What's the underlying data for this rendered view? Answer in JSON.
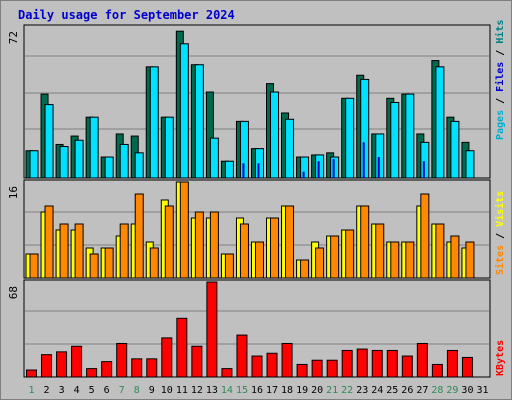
{
  "title": "Daily usage for September 2024",
  "colors": {
    "background": "#c0c0c0",
    "title": "#0000cc",
    "hits_front": "#00b0d0",
    "hits_back": "#006a4e",
    "files": "#00e0ff",
    "pages": "#008080",
    "visits_front": "#ffff00",
    "visits_back": "#ffd000",
    "sites": "#ff8800",
    "kbytes": "#ff0000",
    "weekend": "#2e8b57",
    "weekday": "#000000"
  },
  "chart_data": [
    {
      "type": "bar",
      "title": "",
      "ylabel_max": "72",
      "legend": [
        {
          "label": "Pages",
          "color": "#00b0d0"
        },
        {
          "label": "Files",
          "color": "#0000cc"
        },
        {
          "label": "Hits",
          "color": "#008080"
        }
      ],
      "categories": [
        "1",
        "2",
        "3",
        "4",
        "5",
        "6",
        "7",
        "8",
        "9",
        "10",
        "11",
        "12",
        "13",
        "14",
        "15",
        "16",
        "17",
        "18",
        "19",
        "20",
        "21",
        "22",
        "23",
        "24",
        "25",
        "26",
        "27",
        "28",
        "29",
        "30",
        "31"
      ],
      "ylim": [
        0,
        72
      ],
      "series": [
        {
          "name": "Hits",
          "values": [
            13,
            40,
            16,
            20,
            29,
            10,
            21,
            20,
            53,
            29,
            70,
            54,
            41,
            8,
            27,
            14,
            45,
            31,
            10,
            11,
            12,
            38,
            49,
            21,
            38,
            40,
            21,
            56,
            29,
            17,
            0
          ]
        },
        {
          "name": "Files",
          "values": [
            13,
            35,
            15,
            18,
            29,
            10,
            16,
            12,
            53,
            29,
            64,
            54,
            19,
            8,
            27,
            14,
            41,
            28,
            10,
            11,
            10,
            38,
            47,
            21,
            36,
            40,
            17,
            53,
            27,
            13,
            0
          ]
        },
        {
          "name": "Pages",
          "values": [
            0,
            0,
            0,
            0,
            0,
            0,
            0,
            0,
            0,
            0,
            0,
            0,
            0,
            0,
            7,
            7,
            0,
            0,
            3,
            8,
            9,
            0,
            17,
            10,
            0,
            0,
            8,
            0,
            0,
            0,
            0
          ]
        }
      ]
    },
    {
      "type": "bar",
      "title": "",
      "ylabel_max": "16",
      "legend": [
        {
          "label": "Sites",
          "color": "#ff8800"
        },
        {
          "label": "Visits",
          "color": "#ffff00"
        }
      ],
      "categories": [
        "1",
        "2",
        "3",
        "4",
        "5",
        "6",
        "7",
        "8",
        "9",
        "10",
        "11",
        "12",
        "13",
        "14",
        "15",
        "16",
        "17",
        "18",
        "19",
        "20",
        "21",
        "22",
        "23",
        "24",
        "25",
        "26",
        "27",
        "28",
        "29",
        "30",
        "31"
      ],
      "ylim": [
        0,
        16
      ],
      "series": [
        {
          "name": "Visits",
          "values": [
            4,
            11,
            8,
            8,
            5,
            5,
            7,
            9,
            6,
            13,
            16,
            10,
            10,
            4,
            10,
            6,
            10,
            12,
            3,
            6,
            7,
            8,
            12,
            9,
            6,
            6,
            12,
            9,
            6,
            5,
            0
          ]
        },
        {
          "name": "Sites",
          "values": [
            4,
            12,
            9,
            9,
            4,
            5,
            9,
            14,
            5,
            12,
            16,
            11,
            11,
            4,
            9,
            6,
            10,
            12,
            3,
            5,
            7,
            8,
            12,
            9,
            6,
            6,
            14,
            9,
            7,
            6,
            0
          ]
        }
      ]
    },
    {
      "type": "bar",
      "title": "",
      "ylabel_max": "68",
      "legend": [
        {
          "label": "KBytes",
          "color": "#ff0000"
        }
      ],
      "categories": [
        "1",
        "2",
        "3",
        "4",
        "5",
        "6",
        "7",
        "8",
        "9",
        "10",
        "11",
        "12",
        "13",
        "14",
        "15",
        "16",
        "17",
        "18",
        "19",
        "20",
        "21",
        "22",
        "23",
        "24",
        "25",
        "26",
        "27",
        "28",
        "29",
        "30",
        "31"
      ],
      "ylim": [
        0,
        68
      ],
      "series": [
        {
          "name": "KBytes",
          "values": [
            5,
            16,
            18,
            22,
            6,
            11,
            24,
            13,
            13,
            28,
            42,
            22,
            68,
            6,
            30,
            15,
            17,
            24,
            9,
            12,
            12,
            19,
            20,
            19,
            19,
            15,
            24,
            9,
            19,
            14,
            0
          ]
        }
      ]
    }
  ],
  "x_axis": {
    "labels": [
      "1",
      "2",
      "3",
      "4",
      "5",
      "6",
      "7",
      "8",
      "9",
      "10",
      "11",
      "12",
      "13",
      "14",
      "15",
      "16",
      "17",
      "18",
      "19",
      "20",
      "21",
      "22",
      "23",
      "24",
      "25",
      "26",
      "27",
      "28",
      "29",
      "30",
      "31"
    ],
    "weekend": [
      "1",
      "7",
      "8",
      "14",
      "15",
      "21",
      "22",
      "28",
      "29"
    ]
  }
}
